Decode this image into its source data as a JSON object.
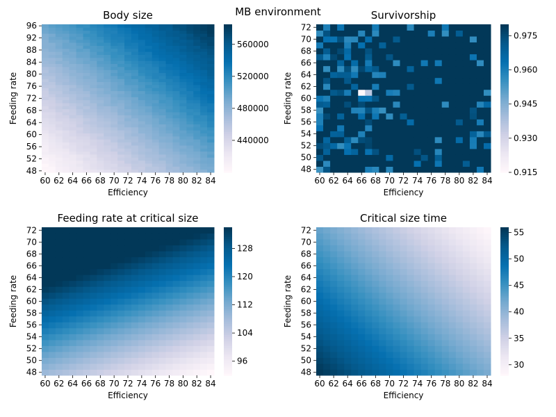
{
  "figure": {
    "suptitle": "MB environment"
  },
  "colormap": [
    "#fff7fb",
    "#ece7f2",
    "#d0d1e6",
    "#a6bddb",
    "#74a9cf",
    "#3690c0",
    "#0570b0",
    "#045a8d",
    "#023858"
  ],
  "chart_data": [
    {
      "type": "heatmap",
      "title": "Body size",
      "xlabel": "Efficiency",
      "ylabel": "Feeding rate",
      "x_range": [
        60,
        84
      ],
      "y_range": [
        48,
        96
      ],
      "x_ticks": [
        "60",
        "62",
        "64",
        "66",
        "68",
        "70",
        "72",
        "74",
        "76",
        "78",
        "80",
        "82",
        "84"
      ],
      "y_ticks": [
        "48",
        "52",
        "56",
        "60",
        "64",
        "68",
        "72",
        "76",
        "80",
        "84",
        "88",
        "92",
        "96"
      ],
      "colorbar": {
        "min": 400000,
        "max": 585000,
        "ticks": [
          "440000",
          "480000",
          "520000",
          "560000"
        ],
        "tick_values": [
          440000,
          480000,
          520000,
          560000
        ]
      },
      "pattern": "value increases with both efficiency and feeding rate; minimum ~400000 at (60,48), maximum ~585000 at (84,96)"
    },
    {
      "type": "heatmap",
      "title": "Survivorship",
      "xlabel": "Efficiency",
      "ylabel": "Feeding rate",
      "x_range": [
        60,
        84
      ],
      "y_range": [
        48,
        72
      ],
      "x_ticks": [
        "60",
        "62",
        "64",
        "66",
        "68",
        "70",
        "72",
        "74",
        "76",
        "78",
        "80",
        "82",
        "84"
      ],
      "y_ticks": [
        "48",
        "50",
        "52",
        "54",
        "56",
        "58",
        "60",
        "62",
        "64",
        "66",
        "68",
        "70",
        "72"
      ],
      "colorbar": {
        "min": 0.915,
        "max": 0.98,
        "ticks": [
          "0.915",
          "0.930",
          "0.945",
          "0.960",
          "0.975"
        ],
        "tick_values": [
          0.915,
          0.93,
          0.945,
          0.96,
          0.975
        ]
      },
      "pattern": "mostly near maximum (~0.98); noisy lower values concentrated at low efficiency (60-68); minimum ~0.915 near (65,62)"
    },
    {
      "type": "heatmap",
      "title": "Feeding rate at critical size",
      "xlabel": "Efficiency",
      "ylabel": "Feeding rate",
      "x_range": [
        60,
        84
      ],
      "y_range": [
        48,
        72
      ],
      "x_ticks": [
        "60",
        "62",
        "64",
        "66",
        "68",
        "70",
        "72",
        "74",
        "76",
        "78",
        "80",
        "82",
        "84"
      ],
      "y_ticks": [
        "48",
        "50",
        "52",
        "54",
        "56",
        "58",
        "60",
        "62",
        "64",
        "66",
        "68",
        "70",
        "72"
      ],
      "colorbar": {
        "min": 92,
        "max": 134,
        "ticks": [
          "96",
          "104",
          "112",
          "120",
          "128"
        ],
        "tick_values": [
          96,
          104,
          112,
          120,
          128
        ]
      },
      "pattern": "increases with feeding rate, decreases slightly with efficiency; ~134 at (60,72), ~92 at (84,48)"
    },
    {
      "type": "heatmap",
      "title": "Critical size time",
      "xlabel": "Efficiency",
      "ylabel": "Feeding rate",
      "x_range": [
        60,
        84
      ],
      "y_range": [
        48,
        72
      ],
      "x_ticks": [
        "60",
        "62",
        "64",
        "66",
        "68",
        "70",
        "72",
        "74",
        "76",
        "78",
        "80",
        "82",
        "84"
      ],
      "y_ticks": [
        "48",
        "50",
        "52",
        "54",
        "56",
        "58",
        "60",
        "62",
        "64",
        "66",
        "68",
        "70",
        "72"
      ],
      "colorbar": {
        "min": 28,
        "max": 56,
        "ticks": [
          "30",
          "35",
          "40",
          "45",
          "50",
          "55"
        ],
        "tick_values": [
          30,
          35,
          40,
          45,
          50,
          55
        ]
      },
      "pattern": "decreases with both efficiency and feeding rate; ~56 at (60,48), ~28 at (84,72)"
    }
  ]
}
